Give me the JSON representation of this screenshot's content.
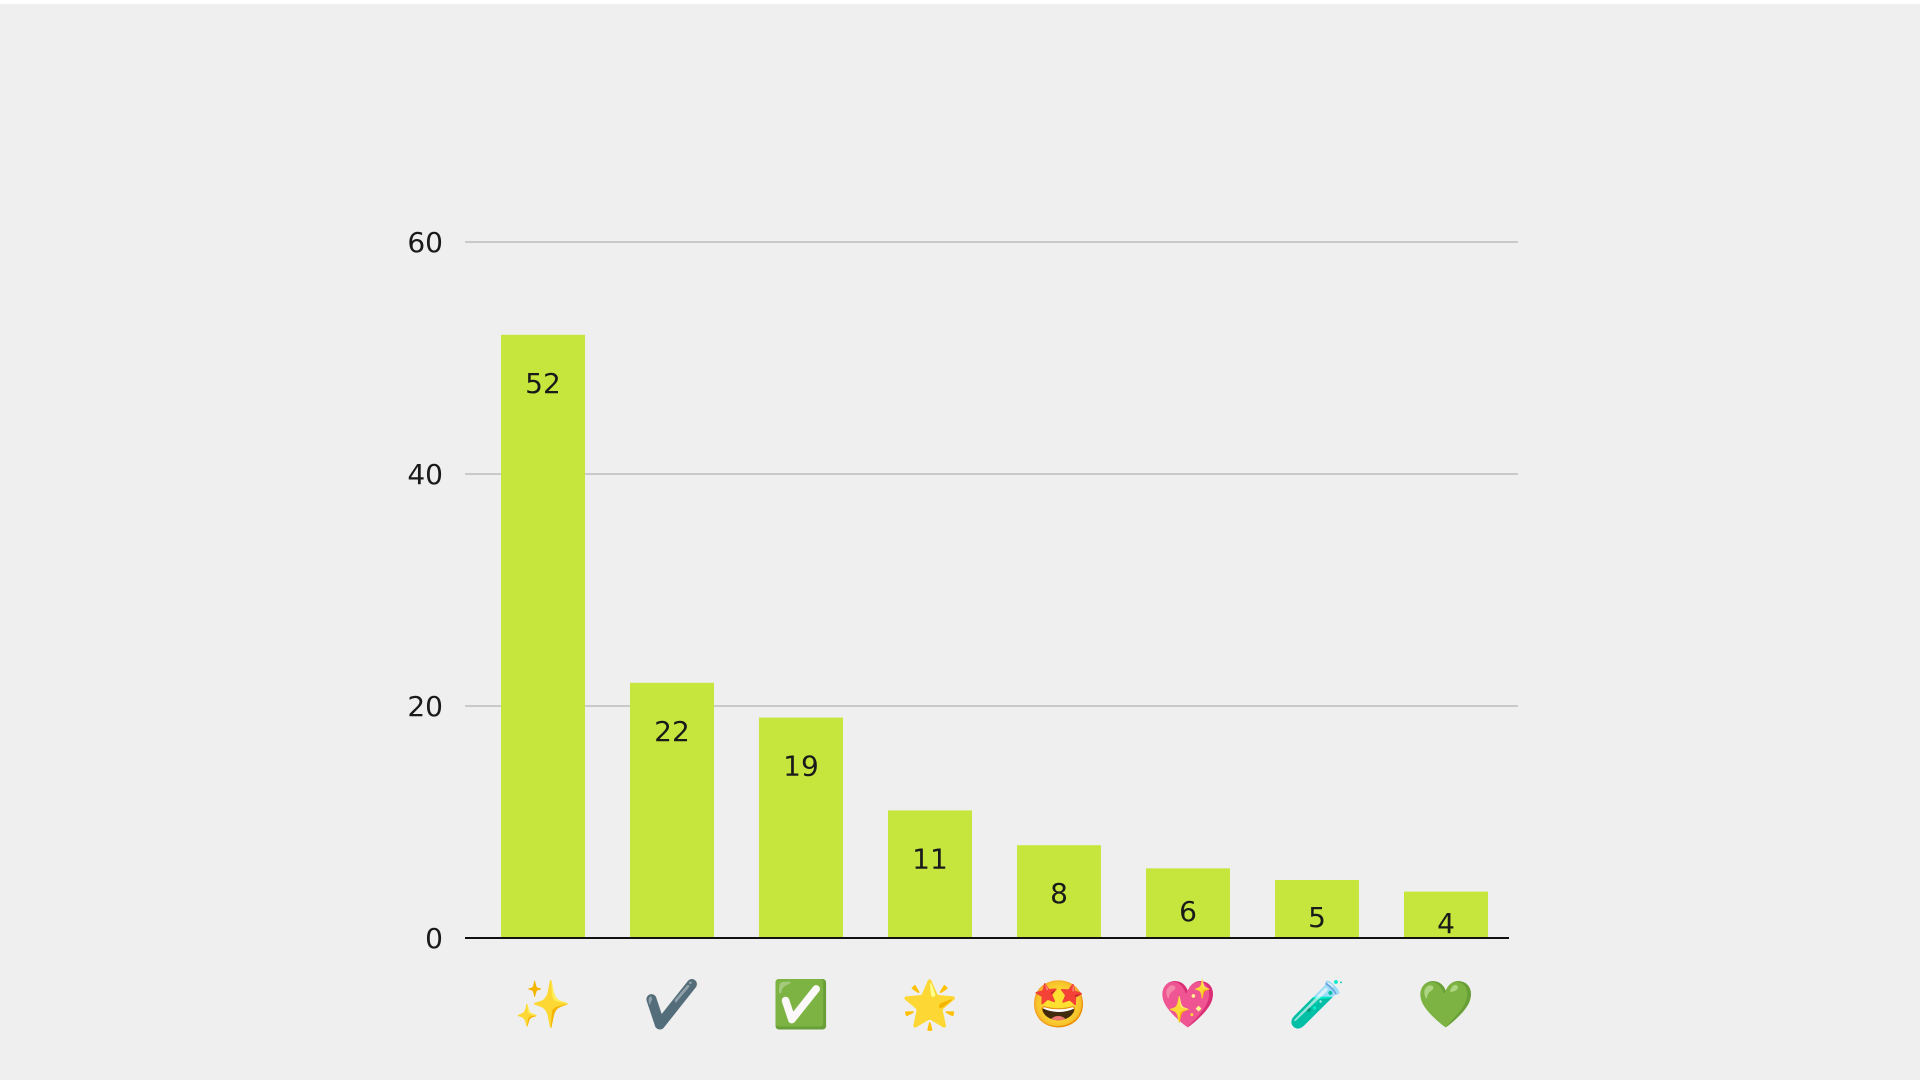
{
  "chart_data": {
    "type": "bar",
    "categories": [
      "✨",
      "✔️",
      "✅",
      "🌟",
      "🤩",
      "💖",
      "🧪",
      "💚"
    ],
    "values": [
      52,
      22,
      19,
      11,
      8,
      6,
      5,
      4
    ],
    "title": "",
    "xlabel": "",
    "ylabel": "",
    "ylim": [
      0,
      60
    ],
    "yticks": [
      0,
      20,
      40,
      60
    ],
    "grid": true,
    "bar_color": "#c6e63e",
    "grid_color": "#c9c9c9",
    "axis_color": "#111111",
    "background": "#efefef"
  }
}
